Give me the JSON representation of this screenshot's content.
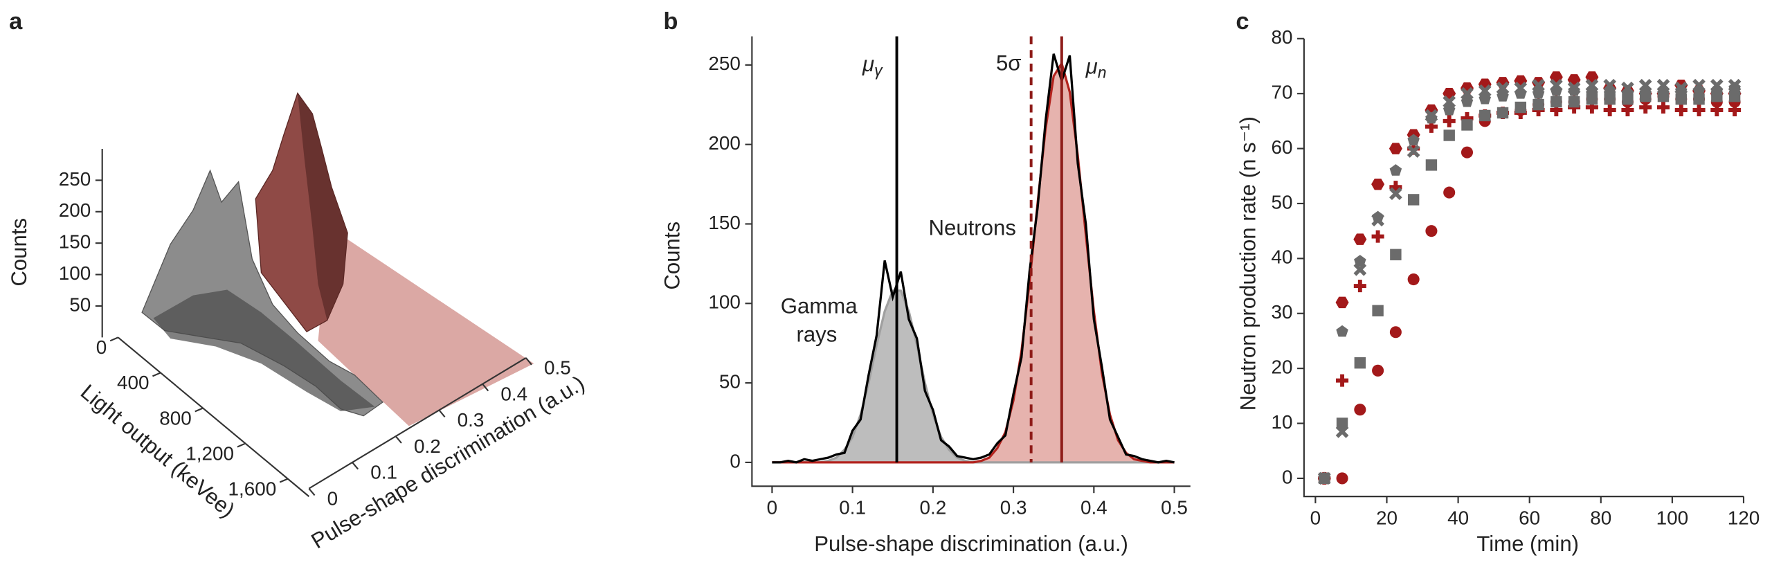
{
  "chart_data": [
    {
      "type": "surface3d",
      "panel": "a",
      "zlabel": "Counts",
      "ylabel": "Light output (keVee)",
      "xlabel": "Pulse-shape discrimination (a.u.)",
      "xlim": [
        0,
        0.5
      ],
      "xticks": [
        0,
        0.1,
        0.2,
        0.3,
        0.4,
        0.5
      ],
      "ylim": [
        0,
        1800
      ],
      "yticks": [
        0,
        400,
        800,
        {
          "value": 1200,
          "label": "1,200"
        },
        {
          "value": 1600,
          "label": "1,600"
        }
      ],
      "zlim": [
        0,
        300
      ],
      "zticks": [
        50,
        100,
        150,
        200,
        250
      ]
    },
    {
      "type": "line",
      "panel": "b",
      "xlabel": "Pulse-shape discrimination (a.u.)",
      "ylabel": "Counts",
      "xlim": [
        -0.025,
        0.52
      ],
      "xticks": [
        0,
        0.1,
        0.2,
        0.3,
        0.4,
        0.5
      ],
      "ylim": [
        -15,
        268
      ],
      "yticks": [
        0,
        50,
        100,
        150,
        200,
        250
      ],
      "x": [
        0,
        0.01,
        0.02,
        0.03,
        0.04,
        0.05,
        0.06,
        0.07,
        0.08,
        0.09,
        0.1,
        0.11,
        0.12,
        0.13,
        0.14,
        0.15,
        0.16,
        0.17,
        0.18,
        0.19,
        0.2,
        0.21,
        0.22,
        0.23,
        0.24,
        0.25,
        0.26,
        0.27,
        0.28,
        0.29,
        0.3,
        0.31,
        0.32,
        0.33,
        0.34,
        0.35,
        0.36,
        0.37,
        0.38,
        0.39,
        0.4,
        0.41,
        0.42,
        0.43,
        0.44,
        0.45,
        0.46,
        0.47,
        0.48,
        0.49,
        0.5
      ],
      "series": [
        {
          "color": "#a0a0a0",
          "fill": "#bdbdbd",
          "values": [
            0,
            0,
            0,
            0,
            0,
            0,
            0,
            1,
            3,
            8,
            16,
            30,
            50,
            74,
            95,
            108,
            108,
            95,
            74,
            50,
            30,
            16,
            8,
            3,
            1,
            0,
            0,
            0,
            0,
            0,
            0,
            0,
            0,
            0,
            0,
            0,
            0,
            0,
            0,
            0,
            0,
            0,
            0,
            0,
            0,
            0,
            0,
            0,
            0,
            0,
            0
          ]
        },
        {
          "color": "#b3231e",
          "fill": "#e6b3ae",
          "values": [
            0,
            0,
            0,
            0,
            0,
            0,
            0,
            0,
            0,
            0,
            0,
            0,
            0,
            0,
            0,
            0,
            0,
            0,
            0,
            0,
            0,
            0,
            0,
            0,
            0,
            0,
            1,
            3,
            9,
            19,
            39,
            70,
            113,
            163,
            210,
            243,
            251,
            233,
            193,
            143,
            95,
            56,
            30,
            14,
            6,
            2,
            1,
            0,
            0,
            0,
            0
          ]
        },
        {
          "color": "#000000",
          "values": [
            0,
            0,
            1,
            0,
            2,
            1,
            2,
            3,
            5,
            6,
            20,
            27,
            55,
            80,
            127,
            104,
            120,
            90,
            78,
            45,
            33,
            14,
            10,
            4,
            3,
            2,
            3,
            5,
            12,
            17,
            43,
            66,
            120,
            160,
            215,
            257,
            240,
            256,
            188,
            150,
            90,
            60,
            27,
            16,
            5,
            4,
            2,
            1,
            0,
            1,
            0
          ]
        }
      ],
      "vlines": [
        {
          "x": 0.155,
          "color": "#000000",
          "dash": false
        },
        {
          "x": 0.322,
          "color": "#8e1b18",
          "dash": true
        },
        {
          "x": 0.36,
          "color": "#8e1b18",
          "dash": false
        }
      ],
      "annotations": [
        {
          "text": "μ",
          "sub": "γ"
        },
        {
          "text": "5σ"
        },
        {
          "text": "μ",
          "sub": "n"
        },
        {
          "text": "Neutrons"
        },
        {
          "text": "Gamma"
        },
        {
          "text": "rays"
        }
      ]
    },
    {
      "type": "scatter",
      "panel": "c",
      "xlabel": "Time (min)",
      "ylabel": "Neutron production rate (n s⁻¹)",
      "xlim": [
        -3.2,
        120
      ],
      "xticks": [
        0,
        20,
        40,
        60,
        80,
        100,
        120
      ],
      "ylim": [
        -3.3,
        80
      ],
      "yticks": [
        0,
        10,
        20,
        30,
        40,
        50,
        60,
        70,
        80
      ],
      "x": [
        2.5,
        7.5,
        12.5,
        17.5,
        22.5,
        27.5,
        32.5,
        37.5,
        42.5,
        47.5,
        52.5,
        57.5,
        62.5,
        67.5,
        72.5,
        77.5,
        82.5,
        87.5,
        92.5,
        97.5,
        102.5,
        107.5,
        112.5,
        117.5
      ],
      "series": [
        {
          "color": "#a3191a",
          "marker": "circle",
          "values": [
            0,
            0,
            12.5,
            19.6,
            26.6,
            36.2,
            45,
            52,
            59.3,
            65,
            66.5,
            67,
            68,
            68.5,
            68.5,
            69,
            69,
            68.5,
            69,
            69.5,
            69,
            69,
            68.5,
            68.5
          ]
        },
        {
          "color": "#a3191a",
          "marker": "hexagon",
          "values": [
            0,
            32,
            43.5,
            53.5,
            60,
            62.5,
            67,
            70,
            71,
            71.7,
            72,
            72.3,
            72,
            73,
            72.5,
            73,
            71,
            70.5,
            70,
            70,
            71.5,
            70.5,
            70,
            70
          ]
        },
        {
          "color": "#a3191a",
          "marker": "plus",
          "values": [
            0,
            17.8,
            35,
            44,
            53,
            60,
            64,
            65,
            65.5,
            66,
            66.5,
            66.5,
            67,
            67,
            67.5,
            67.5,
            67,
            67,
            67.5,
            67.5,
            67,
            67,
            67,
            67
          ]
        },
        {
          "color": "#6b6b6b",
          "marker": "square",
          "values": [
            0,
            10,
            21,
            30.5,
            40.7,
            50.7,
            57,
            62.4,
            64.3,
            66,
            66.5,
            67.5,
            68,
            68.5,
            68.5,
            69,
            69,
            69,
            69.5,
            69.5,
            69,
            69,
            69.5,
            69.5
          ]
        },
        {
          "color": "#6b6b6b",
          "marker": "pentagon",
          "values": [
            0,
            26.7,
            39.5,
            47.5,
            56,
            61.5,
            65.5,
            67,
            68.5,
            69,
            69.5,
            70,
            70,
            70.5,
            70.5,
            70,
            70,
            70,
            70,
            70,
            70.5,
            70.5,
            70.5,
            71
          ]
        },
        {
          "color": "#6b6b6b",
          "marker": "x",
          "values": [
            0,
            8.5,
            38,
            47,
            51.8,
            59.5,
            66,
            68.5,
            70,
            70.5,
            71,
            71,
            71.5,
            71.5,
            71,
            71.5,
            71.5,
            71,
            71.5,
            71.5,
            71,
            71.5,
            71.5,
            71.5
          ]
        }
      ]
    }
  ]
}
